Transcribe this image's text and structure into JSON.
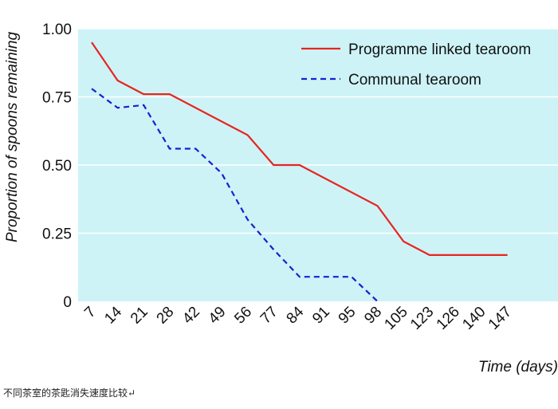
{
  "chart_data": {
    "type": "line",
    "title": "",
    "xlabel": "Time (days)",
    "ylabel": "Proportion of spoons remaining",
    "categories": [
      "7",
      "14",
      "21",
      "28",
      "42",
      "49",
      "56",
      "77",
      "84",
      "91",
      "95",
      "98",
      "105",
      "123",
      "126",
      "140",
      "147"
    ],
    "y_ticks": [
      "1.00",
      "0.75",
      "0.50",
      "0.25",
      "0"
    ],
    "ylim": [
      0,
      1
    ],
    "grid": "horizontal",
    "legend_position": "top-right",
    "background_color": "#cdf3f7",
    "series": [
      {
        "name": "Programme linked tearoom",
        "color": "#e8251f",
        "style": "solid",
        "points": [
          {
            "x": 7,
            "y": 0.95
          },
          {
            "x": 14,
            "y": 0.81
          },
          {
            "x": 21,
            "y": 0.76
          },
          {
            "x": 28,
            "y": 0.76
          },
          {
            "x": 56,
            "y": 0.61
          },
          {
            "x": 77,
            "y": 0.5
          },
          {
            "x": 84,
            "y": 0.5
          },
          {
            "x": 98,
            "y": 0.35
          },
          {
            "x": 105,
            "y": 0.22
          },
          {
            "x": 123,
            "y": 0.17
          },
          {
            "x": 147,
            "y": 0.17
          }
        ]
      },
      {
        "name": "Communal tearoom",
        "color": "#1a1fd1",
        "style": "dashed",
        "points": [
          {
            "x": 7,
            "y": 0.78
          },
          {
            "x": 14,
            "y": 0.71
          },
          {
            "x": 21,
            "y": 0.72
          },
          {
            "x": 28,
            "y": 0.56
          },
          {
            "x": 42,
            "y": 0.56
          },
          {
            "x": 49,
            "y": 0.47
          },
          {
            "x": 56,
            "y": 0.3
          },
          {
            "x": 77,
            "y": 0.19
          },
          {
            "x": 84,
            "y": 0.09
          },
          {
            "x": 95,
            "y": 0.09
          },
          {
            "x": 98,
            "y": 0
          }
        ]
      }
    ]
  },
  "caption": "不同茶室的茶匙消失速度比较↵"
}
